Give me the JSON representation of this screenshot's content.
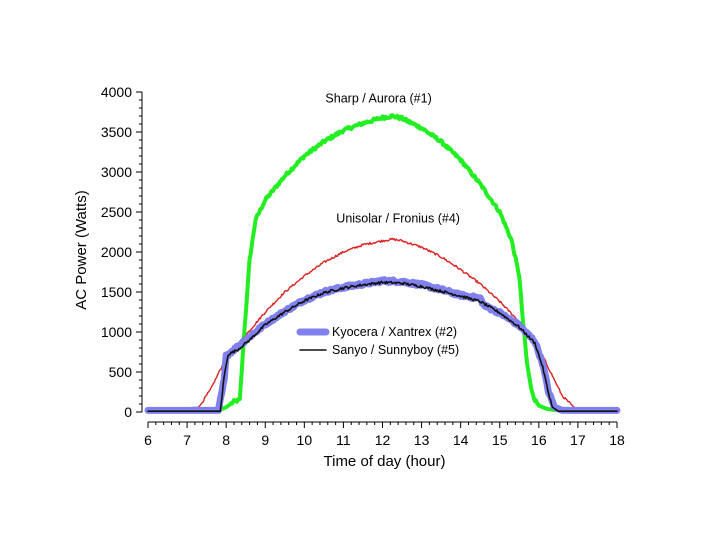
{
  "chart_data": {
    "type": "line",
    "title": "",
    "xlabel": "Time of day  (hour)",
    "ylabel": "AC Power (Watts)",
    "xlim": [
      6,
      18
    ],
    "ylim": [
      0,
      4000
    ],
    "xticks": [
      6,
      7,
      8,
      9,
      10,
      11,
      12,
      13,
      14,
      15,
      16,
      17,
      18
    ],
    "yticks": [
      0,
      500,
      1000,
      1500,
      2000,
      2500,
      3000,
      3500,
      4000
    ],
    "grid": false,
    "series": [
      {
        "name": "Sharp / Aurora (#1)",
        "color": "#22ee22",
        "x": [
          6,
          7.8,
          8.0,
          8.2,
          8.35,
          8.45,
          8.6,
          8.75,
          9.0,
          9.5,
          10.0,
          10.5,
          11.0,
          11.5,
          12.0,
          12.25,
          12.5,
          13.0,
          13.5,
          14.0,
          14.5,
          15.0,
          15.3,
          15.5,
          15.6,
          15.7,
          15.8,
          15.9,
          16.0,
          16.2,
          16.5,
          17.0,
          18
        ],
        "y": [
          20,
          20,
          60,
          130,
          150,
          900,
          1900,
          2400,
          2650,
          2950,
          3200,
          3380,
          3520,
          3610,
          3680,
          3700,
          3670,
          3550,
          3380,
          3150,
          2850,
          2500,
          2150,
          1700,
          1100,
          600,
          300,
          150,
          80,
          40,
          20,
          20,
          20
        ]
      },
      {
        "name": "Unisolar / Fronius (#4)",
        "color": "#dd2222",
        "x": [
          6,
          7.3,
          7.6,
          8.0,
          8.5,
          9.0,
          9.5,
          10.0,
          10.5,
          11.0,
          11.5,
          12.0,
          12.25,
          12.5,
          13.0,
          13.5,
          14.0,
          14.5,
          15.0,
          15.5,
          16.0,
          16.3,
          16.6,
          16.9,
          17.2,
          18
        ],
        "y": [
          20,
          60,
          280,
          680,
          960,
          1250,
          1500,
          1700,
          1870,
          2000,
          2090,
          2140,
          2160,
          2140,
          2060,
          1940,
          1780,
          1600,
          1380,
          1130,
          800,
          500,
          200,
          60,
          20,
          20
        ]
      },
      {
        "name": "Kyocera / Xantrex (#2)",
        "color": "#8080ee",
        "x": [
          6,
          7.8,
          7.95,
          8.0,
          8.2,
          8.5,
          9.0,
          9.5,
          10.0,
          10.5,
          11.0,
          11.5,
          12.0,
          12.5,
          13.0,
          13.5,
          14.0,
          14.5,
          14.6,
          15.0,
          15.5,
          15.9,
          16.1,
          16.25,
          16.4,
          16.6,
          18
        ],
        "y": [
          20,
          20,
          400,
          700,
          780,
          900,
          1100,
          1260,
          1400,
          1500,
          1560,
          1600,
          1640,
          1630,
          1590,
          1530,
          1460,
          1420,
          1330,
          1240,
          1080,
          880,
          600,
          250,
          60,
          20,
          20
        ]
      },
      {
        "name": "Sanyo / Sunnyboy (#5)",
        "color": "#111111",
        "x": [
          6,
          7.85,
          7.95,
          8.05,
          8.3,
          8.6,
          9.0,
          9.5,
          10.0,
          10.5,
          11.0,
          11.5,
          12.0,
          12.5,
          13.0,
          13.5,
          14.0,
          14.5,
          15.0,
          15.5,
          15.9,
          16.1,
          16.25,
          16.35,
          16.5,
          18
        ],
        "y": [
          10,
          10,
          450,
          720,
          780,
          900,
          1090,
          1250,
          1390,
          1490,
          1550,
          1590,
          1620,
          1610,
          1570,
          1510,
          1450,
          1380,
          1240,
          1060,
          860,
          560,
          230,
          60,
          10,
          10
        ]
      }
    ],
    "annotations": [
      {
        "text": "Sharp / Aurora (#1)",
        "x": 11.9,
        "y": 3870,
        "anchor": "middle"
      },
      {
        "text": "Unisolar / Fronius (#4)",
        "x": 12.4,
        "y": 2370,
        "anchor": "middle"
      }
    ],
    "legend": {
      "placement": "center",
      "entries": [
        {
          "label": "Kyocera / Xantrex (#2)",
          "color": "#8080ee"
        },
        {
          "label": "Sanyo / Sunnyboy (#5)",
          "color": "#111111"
        }
      ]
    }
  }
}
